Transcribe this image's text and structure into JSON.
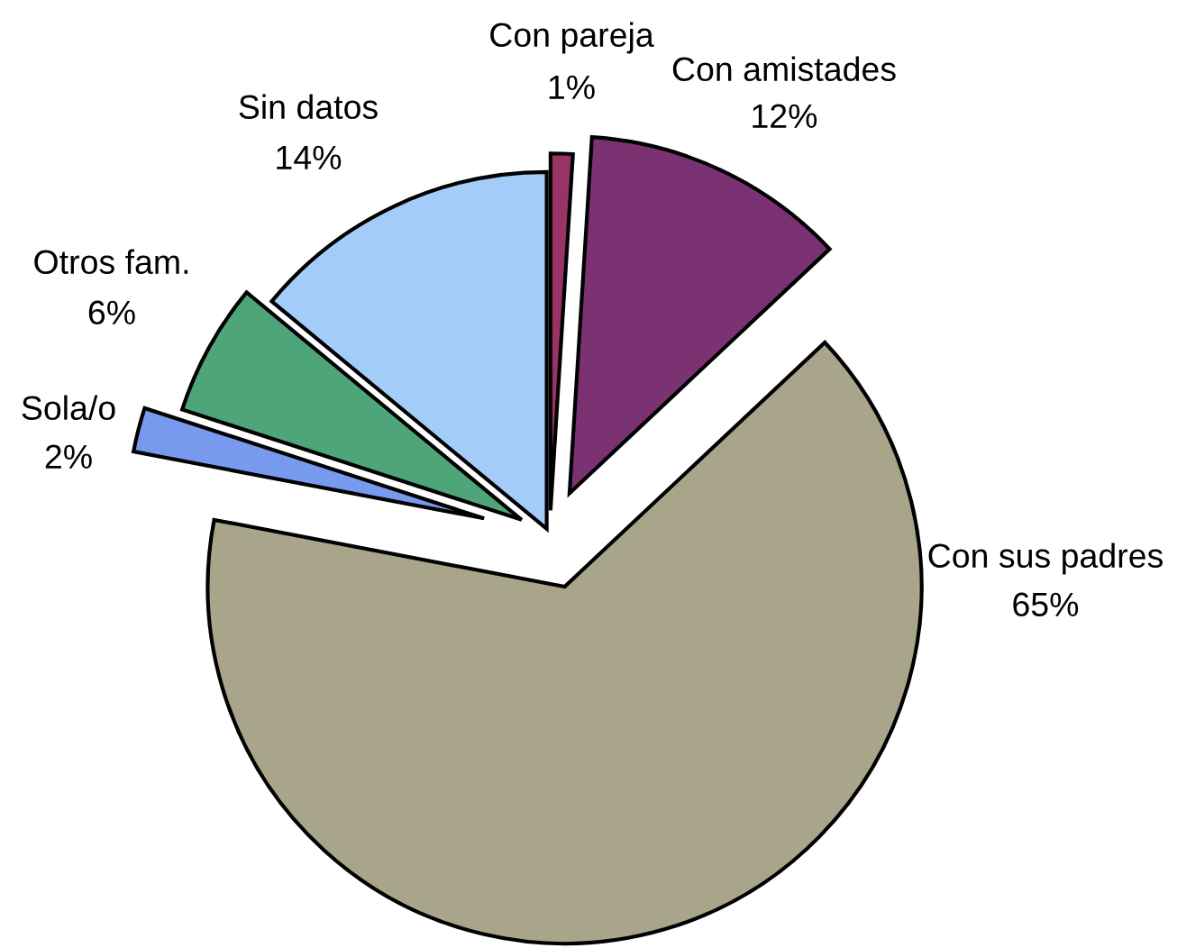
{
  "chart_data": {
    "type": "pie",
    "categories": [
      "Con pareja",
      "Con amistades",
      "Con sus padres",
      "Sola/o",
      "Otros fam.",
      "Sin datos"
    ],
    "values": [
      1,
      12,
      65,
      2,
      6,
      14
    ],
    "value_labels": [
      "1%",
      "12%",
      "65%",
      "2%",
      "6%",
      "14%"
    ],
    "colors": [
      "#993366",
      "#7a3272",
      "#a8a58a",
      "#7799ee",
      "#4ea57a",
      "#a3ccf8"
    ]
  }
}
